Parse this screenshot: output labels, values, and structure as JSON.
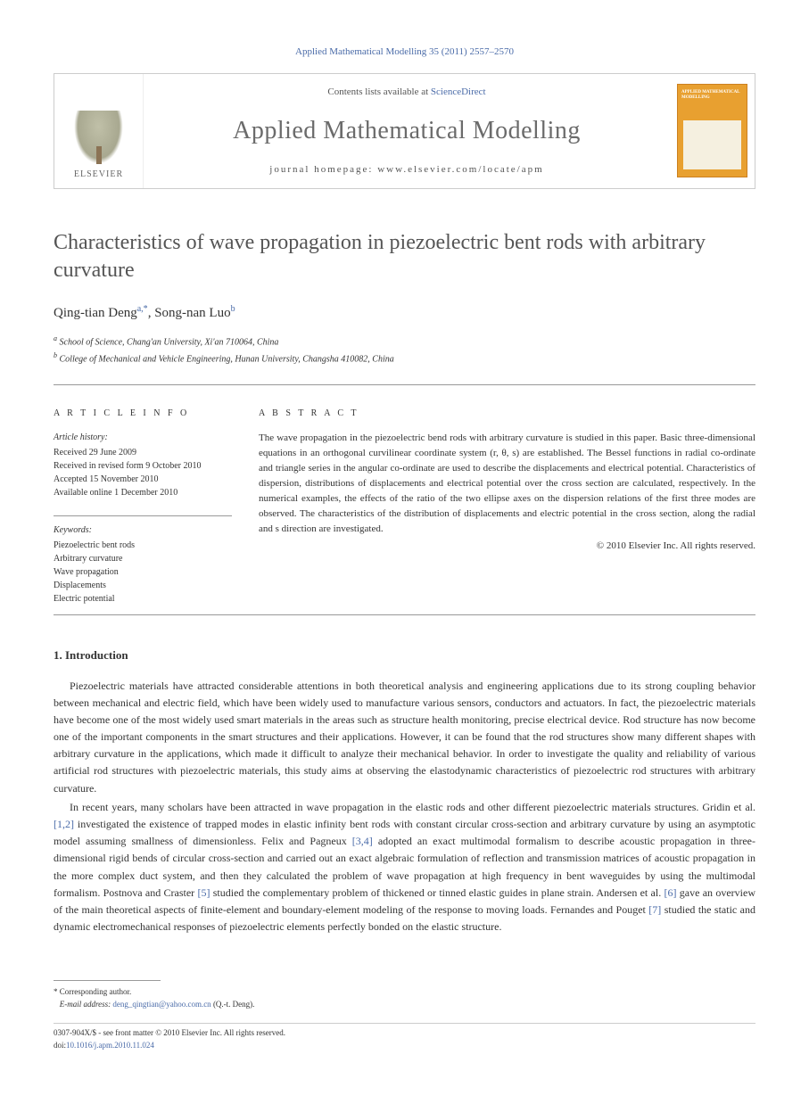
{
  "header": {
    "citation": "Applied Mathematical Modelling 35 (2011) 2557–2570"
  },
  "banner": {
    "contents_prefix": "Contents lists available at ",
    "contents_link": "ScienceDirect",
    "journal_name": "Applied Mathematical Modelling",
    "homepage_label": "journal homepage: www.elsevier.com/locate/apm",
    "publisher": "ELSEVIER",
    "cover_title": "APPLIED MATHEMATICAL MODELLING"
  },
  "article": {
    "title": "Characteristics of wave propagation in piezoelectric bent rods with arbitrary curvature",
    "authors_html": "Qing-tian Deng",
    "author1_sup": "a,*",
    "author_sep": ", ",
    "author2": "Song-nan Luo",
    "author2_sup": "b",
    "affiliations": [
      {
        "sup": "a",
        "text": "School of Science, Chang'an University, Xi'an 710064, China"
      },
      {
        "sup": "b",
        "text": "College of Mechanical and Vehicle Engineering, Hunan University, Changsha 410082, China"
      }
    ]
  },
  "info": {
    "heading": "A R T I C L E   I N F O",
    "history_label": "Article history:",
    "history": [
      "Received 29 June 2009",
      "Received in revised form 9 October 2010",
      "Accepted 15 November 2010",
      "Available online 1 December 2010"
    ],
    "keywords_label": "Keywords:",
    "keywords": [
      "Piezoelectric bent rods",
      "Arbitrary curvature",
      "Wave propagation",
      "Displacements",
      "Electric potential"
    ]
  },
  "abstract": {
    "heading": "A B S T R A C T",
    "text": "The wave propagation in the piezoelectric bend rods with arbitrary curvature is studied in this paper. Basic three-dimensional equations in an orthogonal curvilinear coordinate system (r, θ, s) are established. The Bessel functions in radial co-ordinate and triangle series in the angular co-ordinate are used to describe the displacements and electrical potential. Characteristics of dispersion, distributions of displacements and electrical potential over the cross section are calculated, respectively. In the numerical examples, the effects of the ratio of the two ellipse axes on the dispersion relations of the first three modes are observed. The characteristics of the distribution of displacements and electric potential in the cross section, along the radial and s direction are investigated.",
    "copyright": "© 2010 Elsevier Inc. All rights reserved."
  },
  "sections": {
    "intro_heading": "1. Introduction",
    "para1": "Piezoelectric materials have attracted considerable attentions in both theoretical analysis and engineering applications due to its strong coupling behavior between mechanical and electric field, which have been widely used to manufacture various sensors, conductors and actuators. In fact, the piezoelectric materials have become one of the most widely used smart materials in the areas such as structure health monitoring, precise electrical device. Rod structure has now become one of the important components in the smart structures and their applications. However, it can be found that the rod structures show many different shapes with arbitrary curvature in the applications, which made it difficult to analyze their mechanical behavior. In order to investigate the quality and reliability of various artificial rod structures with piezoelectric materials, this study aims at observing the elastodynamic characteristics of piezoelectric rod structures with arbitrary curvature.",
    "para2_pre": "In recent years, many scholars have been attracted in wave propagation in the elastic rods and other different piezoelectric materials structures. Gridin et al. ",
    "ref12": "[1,2]",
    "para2_a": " investigated the existence of trapped modes in elastic infinity bent rods with constant circular cross-section and arbitrary curvature by using an asymptotic model assuming smallness of dimensionless. Felix and Pagneux ",
    "ref34": "[3,4]",
    "para2_b": " adopted an exact multimodal formalism to describe acoustic propagation in three-dimensional rigid bends of circular cross-section and carried out an exact algebraic formulation of reflection and transmission matrices of acoustic propagation in the more complex duct system, and then they calculated the problem of wave propagation at high frequency in bent waveguides by using the multimodal formalism. Postnova and Craster ",
    "ref5": "[5]",
    "para2_c": " studied the complementary problem of thickened or tinned elastic guides in plane strain. Andersen et al. ",
    "ref6": "[6]",
    "para2_d": " gave an overview of the main theoretical aspects of finite-element and boundary-element modeling of the response to moving loads. Fernandes and Pouget ",
    "ref7": "[7]",
    "para2_e": " studied the static and dynamic electromechanical responses of piezoelectric elements perfectly bonded on the elastic structure."
  },
  "footnote": {
    "corr_label": "* Corresponding author.",
    "email_label": "E-mail address:",
    "email": "deng_qingtian@yahoo.com.cn",
    "email_suffix": " (Q.-t. Deng)."
  },
  "footer": {
    "line1": "0307-904X/$ - see front matter © 2010 Elsevier Inc. All rights reserved.",
    "doi_label": "doi:",
    "doi": "10.1016/j.apm.2010.11.024"
  },
  "colors": {
    "link": "#4a6ba8",
    "text": "#333333",
    "journal_cover": "#e8a030"
  }
}
